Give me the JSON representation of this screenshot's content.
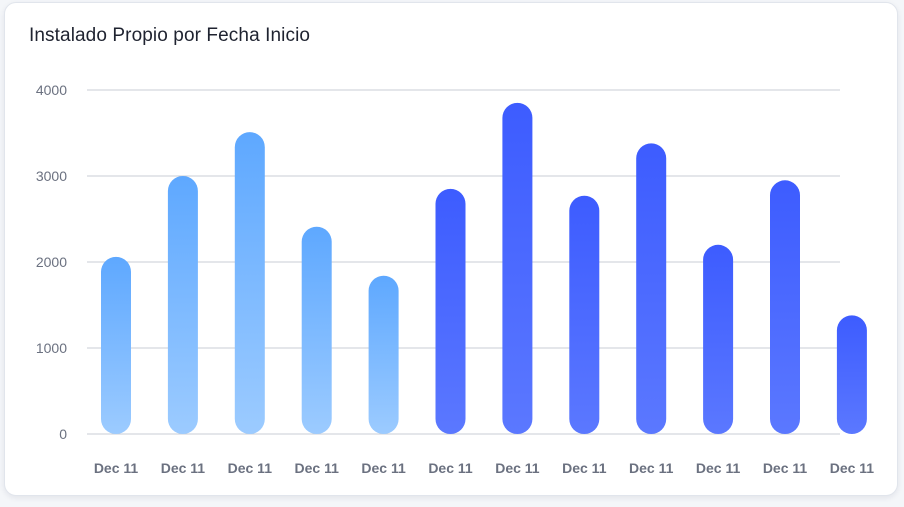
{
  "chart_data": {
    "type": "bar",
    "title": "Instalado Propio por Fecha Inicio",
    "xlabel": "",
    "ylabel": "",
    "ylim": [
      0,
      4000
    ],
    "yticks": [
      "0",
      "1000",
      "2000",
      "3000",
      "4000"
    ],
    "grid": true,
    "categories": [
      "Dec 11",
      "Dec 11",
      "Dec 11",
      "Dec 11",
      "Dec 11",
      "Dec 11",
      "Dec 11",
      "Dec 11",
      "Dec 11",
      "Dec 11",
      "Dec 11",
      "Dec 11"
    ],
    "values": [
      2060,
      3000,
      3510,
      2410,
      1840,
      2850,
      3850,
      2770,
      3380,
      2200,
      2950,
      1380
    ],
    "bar_colors": [
      "#5ea8ff",
      "#5ea8ff",
      "#5ea8ff",
      "#5ea8ff",
      "#5ea8ff",
      "#3d5cff",
      "#3d5cff",
      "#3d5cff",
      "#3d5cff",
      "#3d5cff",
      "#3d5cff",
      "#3d5cff"
    ],
    "bar_colors_light": [
      "#9ccbff",
      "#9ccbff",
      "#9ccbff",
      "#9ccbff",
      "#9ccbff",
      "#5b78ff",
      "#5b78ff",
      "#5b78ff",
      "#5b78ff",
      "#5b78ff",
      "#5b78ff",
      "#5b78ff"
    ]
  },
  "colors": {
    "grid": "#c9cdd4",
    "card_background": "#ffffff"
  }
}
